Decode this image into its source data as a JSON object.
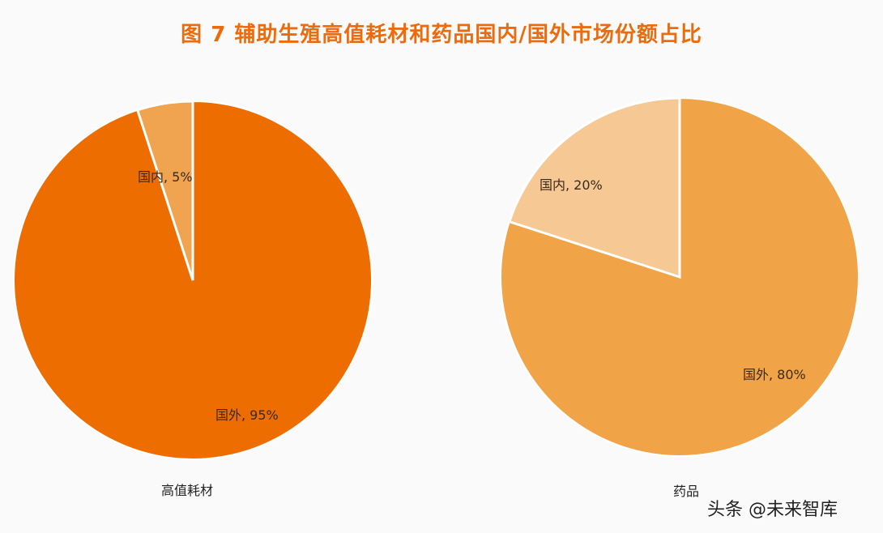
{
  "title": "图 7 辅助生殖高值耗材和药品国内/国外市场份额占比",
  "watermark": "头条 @未来智库",
  "colors": {
    "title": "#ec6b0d",
    "consumables_foreign": "#ed6d00",
    "consumables_domestic": "#f0a450",
    "drugs_foreign": "#f0a447",
    "drugs_domestic": "#f5c894",
    "separator": "#ffffff"
  },
  "charts": [
    {
      "category": "高值耗材",
      "slices": [
        {
          "label": "国内, 5%",
          "name": "国内",
          "value": 5
        },
        {
          "label": "国外, 95%",
          "name": "国外",
          "value": 95
        }
      ]
    },
    {
      "category": "药品",
      "slices": [
        {
          "label": "国内, 20%",
          "name": "国内",
          "value": 20
        },
        {
          "label": "国外, 80%",
          "name": "国外",
          "value": 80
        }
      ]
    }
  ],
  "chart_data": [
    {
      "type": "pie",
      "title": "图 7 辅助生殖高值耗材和药品国内/国外市场份额占比",
      "subtitle": "高值耗材",
      "categories": [
        "国内",
        "国外"
      ],
      "values": [
        5,
        95
      ],
      "unit": "%",
      "data_labels": [
        "国内, 5%",
        "国外, 95%"
      ],
      "start_angle_deg": 0,
      "direction": "counterclockwise-from-top for 国内",
      "legend": "none"
    },
    {
      "type": "pie",
      "title": "图 7 辅助生殖高值耗材和药品国内/国外市场份额占比",
      "subtitle": "药品",
      "categories": [
        "国内",
        "国外"
      ],
      "values": [
        20,
        80
      ],
      "unit": "%",
      "data_labels": [
        "国内, 20%",
        "国外, 80%"
      ],
      "start_angle_deg": 0,
      "direction": "counterclockwise-from-top for 国内",
      "legend": "none"
    }
  ]
}
